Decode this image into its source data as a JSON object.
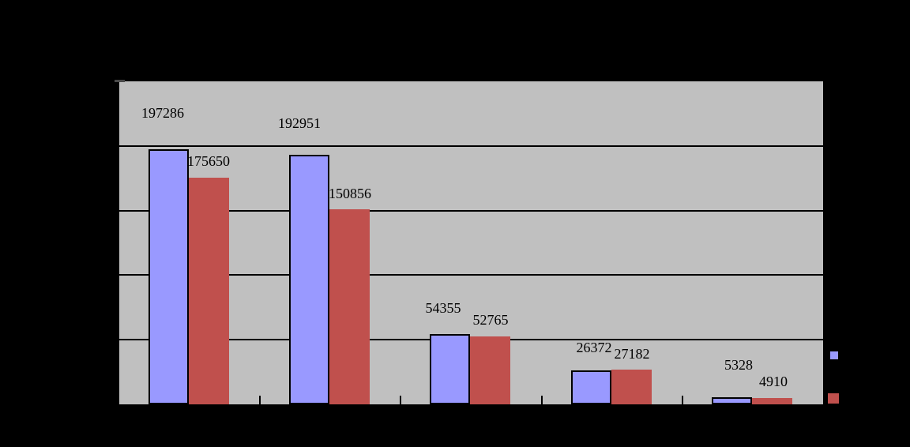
{
  "chart_data": {
    "type": "bar",
    "title": "",
    "categories": [
      "",
      "",
      "",
      "",
      ""
    ],
    "category_count": 5,
    "series": [
      {
        "color": "#9999ff",
        "border_color": "#000000",
        "values": [
          197286,
          192951,
          54355,
          26372,
          5328
        ]
      },
      {
        "color": "#c0504d",
        "border_color": null,
        "values": [
          175650,
          150856,
          52765,
          27182,
          4910
        ]
      }
    ],
    "data_labels": [
      "197286",
      "192951",
      "54355",
      "26372",
      "5328",
      "175650",
      "150856",
      "52765",
      "27182",
      "4910"
    ],
    "ylim": [
      0,
      250000
    ],
    "y_gridline_step": 50000,
    "grid": true,
    "data_labels_visible": true,
    "legend_position": "right",
    "colors": {
      "plot_background": "#c0c0c0",
      "chart_background": "#000000",
      "gridline": "#000000",
      "axis": "#000000",
      "label_text": "#000000"
    }
  }
}
